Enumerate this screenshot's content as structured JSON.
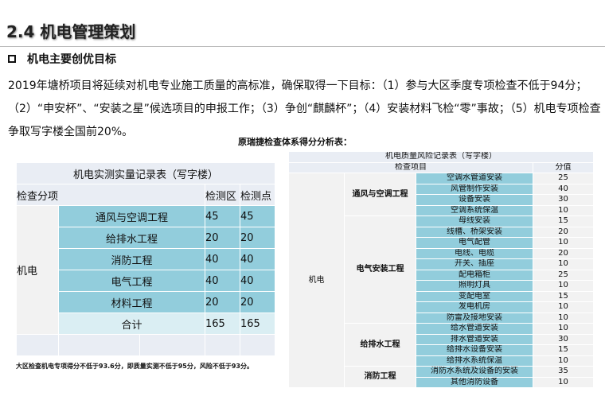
{
  "title": "2.4  机电管理策划",
  "subtitle": "机电主要创优目标",
  "paragraph": "2019年塘桥项目将延续对机电专业施工质量的高标准，确保取得一下目标：（1）参与大区季度专项检查不低于94分；（2）“申安杯”、“安装之星”候选项目的申报工作；（3）争创“麒麟杯”；（4）安装材料飞检“零”事故；（5）机电专项检查争取写字楼全国前20%。",
  "caption": "原瑞捷检查体系得分分析表：",
  "left_table": {
    "title": "机电实测实量记录表（写字楼）",
    "headers": [
      "检查分项",
      "检测区",
      "检测点"
    ],
    "group": "机电",
    "rows": [
      {
        "item": "通风与空调工程",
        "zone": "45",
        "points": "45"
      },
      {
        "item": "给排水工程",
        "zone": "20",
        "points": "20"
      },
      {
        "item": "消防工程",
        "zone": "40",
        "points": "40"
      },
      {
        "item": "电气工程",
        "zone": "40",
        "points": "40"
      },
      {
        "item": "材料工程",
        "zone": "20",
        "points": "20"
      }
    ],
    "total": {
      "label": "合计",
      "zone": "165",
      "points": "165"
    }
  },
  "note": "大区检查机电专项得分不低于93.6分，即质量实测不低于95分，风险不低于93分。",
  "right_table": {
    "title": "机电质量风险记录表（写字楼）",
    "headers": [
      "检查项目",
      "分值"
    ],
    "group": "机电",
    "sections": [
      {
        "name": "通风与空调工程",
        "items": [
          [
            "空调水管道安装",
            "25"
          ],
          [
            "风管制作安装",
            "40"
          ],
          [
            "设备安装",
            "30"
          ],
          [
            "空调系统保温",
            "10"
          ]
        ]
      },
      {
        "name": "电气安装工程",
        "items": [
          [
            "母线安装",
            "15"
          ],
          [
            "线槽、桥架安装",
            "20"
          ],
          [
            "电气配管",
            "10"
          ],
          [
            "电线、电缆",
            "20"
          ],
          [
            "开关、插座",
            "10"
          ],
          [
            "配电箱柜",
            "25"
          ],
          [
            "照明灯具",
            "10"
          ],
          [
            "变配电室",
            "15"
          ],
          [
            "发电机房",
            "10"
          ],
          [
            "防雷及接地安装",
            "10"
          ]
        ]
      },
      {
        "name": "给排水工程",
        "items": [
          [
            "给水管道安装",
            "10"
          ],
          [
            "排水管道安装",
            "30"
          ],
          [
            "给排水设备安装",
            "15"
          ],
          [
            "给排水系统保温",
            "10"
          ]
        ]
      },
      {
        "name": "消防工程",
        "items": [
          [
            "消防水系统及设备的安装",
            "35"
          ],
          [
            "其他消防设备",
            "10"
          ]
        ]
      }
    ]
  },
  "colors": {
    "teal": "#92cddc",
    "header": "#e9edf4",
    "grey": "#f2f2f2",
    "total": "#daeef3"
  }
}
